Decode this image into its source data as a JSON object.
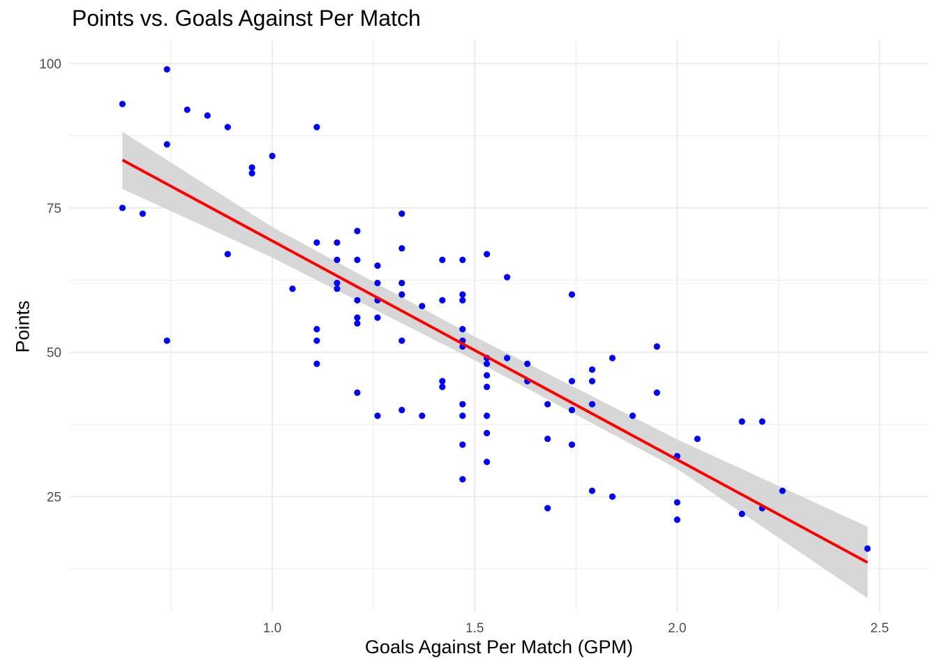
{
  "chart_data": {
    "type": "scatter",
    "title": "Points vs. Goals Against Per Match",
    "xlabel": "Goals Against Per Match (GPM)",
    "ylabel": "Points",
    "xlim": [
      0.5,
      2.62
    ],
    "ylim": [
      5,
      104
    ],
    "x_ticks": [
      1.0,
      1.5,
      2.0,
      2.5
    ],
    "x_tick_labels": [
      "1.0",
      "1.5",
      "2.0",
      "2.5"
    ],
    "y_ticks": [
      25,
      50,
      75,
      100
    ],
    "y_tick_labels": [
      "25",
      "50",
      "75",
      "100"
    ],
    "grid": true,
    "legend": "none",
    "colors": {
      "points": "#0000ff",
      "fit_line": "#ff0000",
      "confidence_band": "#d3d3d3",
      "grid": "#ebebeb"
    },
    "points": [
      {
        "x": 0.63,
        "y": 93
      },
      {
        "x": 0.63,
        "y": 75
      },
      {
        "x": 0.68,
        "y": 74
      },
      {
        "x": 0.74,
        "y": 99
      },
      {
        "x": 0.74,
        "y": 86
      },
      {
        "x": 0.74,
        "y": 52
      },
      {
        "x": 0.79,
        "y": 92
      },
      {
        "x": 0.84,
        "y": 91
      },
      {
        "x": 0.89,
        "y": 89
      },
      {
        "x": 0.89,
        "y": 67
      },
      {
        "x": 0.95,
        "y": 82
      },
      {
        "x": 0.95,
        "y": 81
      },
      {
        "x": 1.0,
        "y": 84
      },
      {
        "x": 1.05,
        "y": 61
      },
      {
        "x": 1.11,
        "y": 89
      },
      {
        "x": 1.11,
        "y": 69
      },
      {
        "x": 1.11,
        "y": 54
      },
      {
        "x": 1.11,
        "y": 52
      },
      {
        "x": 1.11,
        "y": 48
      },
      {
        "x": 1.16,
        "y": 69
      },
      {
        "x": 1.16,
        "y": 66
      },
      {
        "x": 1.16,
        "y": 62
      },
      {
        "x": 1.16,
        "y": 61
      },
      {
        "x": 1.21,
        "y": 71
      },
      {
        "x": 1.21,
        "y": 66
      },
      {
        "x": 1.21,
        "y": 59
      },
      {
        "x": 1.21,
        "y": 56
      },
      {
        "x": 1.21,
        "y": 55
      },
      {
        "x": 1.21,
        "y": 43
      },
      {
        "x": 1.26,
        "y": 65
      },
      {
        "x": 1.26,
        "y": 62
      },
      {
        "x": 1.26,
        "y": 59
      },
      {
        "x": 1.26,
        "y": 56
      },
      {
        "x": 1.26,
        "y": 39
      },
      {
        "x": 1.32,
        "y": 74
      },
      {
        "x": 1.32,
        "y": 68
      },
      {
        "x": 1.32,
        "y": 62
      },
      {
        "x": 1.32,
        "y": 60
      },
      {
        "x": 1.32,
        "y": 52
      },
      {
        "x": 1.32,
        "y": 40
      },
      {
        "x": 1.37,
        "y": 58
      },
      {
        "x": 1.37,
        "y": 39
      },
      {
        "x": 1.42,
        "y": 66
      },
      {
        "x": 1.42,
        "y": 59
      },
      {
        "x": 1.42,
        "y": 45
      },
      {
        "x": 1.42,
        "y": 44
      },
      {
        "x": 1.47,
        "y": 66
      },
      {
        "x": 1.47,
        "y": 60
      },
      {
        "x": 1.47,
        "y": 59
      },
      {
        "x": 1.47,
        "y": 54
      },
      {
        "x": 1.47,
        "y": 52
      },
      {
        "x": 1.47,
        "y": 51
      },
      {
        "x": 1.47,
        "y": 41
      },
      {
        "x": 1.47,
        "y": 39
      },
      {
        "x": 1.47,
        "y": 34
      },
      {
        "x": 1.47,
        "y": 28
      },
      {
        "x": 1.53,
        "y": 67
      },
      {
        "x": 1.53,
        "y": 49
      },
      {
        "x": 1.53,
        "y": 48
      },
      {
        "x": 1.53,
        "y": 46
      },
      {
        "x": 1.53,
        "y": 44
      },
      {
        "x": 1.53,
        "y": 39
      },
      {
        "x": 1.53,
        "y": 36
      },
      {
        "x": 1.53,
        "y": 31
      },
      {
        "x": 1.58,
        "y": 63
      },
      {
        "x": 1.58,
        "y": 49
      },
      {
        "x": 1.63,
        "y": 48
      },
      {
        "x": 1.63,
        "y": 45
      },
      {
        "x": 1.68,
        "y": 41
      },
      {
        "x": 1.68,
        "y": 35
      },
      {
        "x": 1.68,
        "y": 23
      },
      {
        "x": 1.74,
        "y": 60
      },
      {
        "x": 1.74,
        "y": 45
      },
      {
        "x": 1.74,
        "y": 40
      },
      {
        "x": 1.74,
        "y": 34
      },
      {
        "x": 1.79,
        "y": 47
      },
      {
        "x": 1.79,
        "y": 45
      },
      {
        "x": 1.79,
        "y": 41
      },
      {
        "x": 1.79,
        "y": 26
      },
      {
        "x": 1.84,
        "y": 49
      },
      {
        "x": 1.84,
        "y": 25
      },
      {
        "x": 1.89,
        "y": 39
      },
      {
        "x": 1.95,
        "y": 51
      },
      {
        "x": 1.95,
        "y": 43
      },
      {
        "x": 2.0,
        "y": 32
      },
      {
        "x": 2.0,
        "y": 24
      },
      {
        "x": 2.0,
        "y": 21
      },
      {
        "x": 2.05,
        "y": 35
      },
      {
        "x": 2.16,
        "y": 38
      },
      {
        "x": 2.16,
        "y": 22
      },
      {
        "x": 2.21,
        "y": 38
      },
      {
        "x": 2.21,
        "y": 23
      },
      {
        "x": 2.26,
        "y": 26
      },
      {
        "x": 2.47,
        "y": 16
      }
    ],
    "fit_line": {
      "x": [
        0.63,
        2.47
      ],
      "y": [
        83.3,
        13.6
      ]
    },
    "confidence_band": {
      "x": [
        0.63,
        1.0,
        1.5,
        2.0,
        2.47
      ],
      "upper": [
        88.2,
        71.7,
        52.7,
        34.9,
        19.8
      ],
      "lower": [
        78.3,
        66.4,
        48.6,
        29.8,
        7.4
      ]
    }
  }
}
